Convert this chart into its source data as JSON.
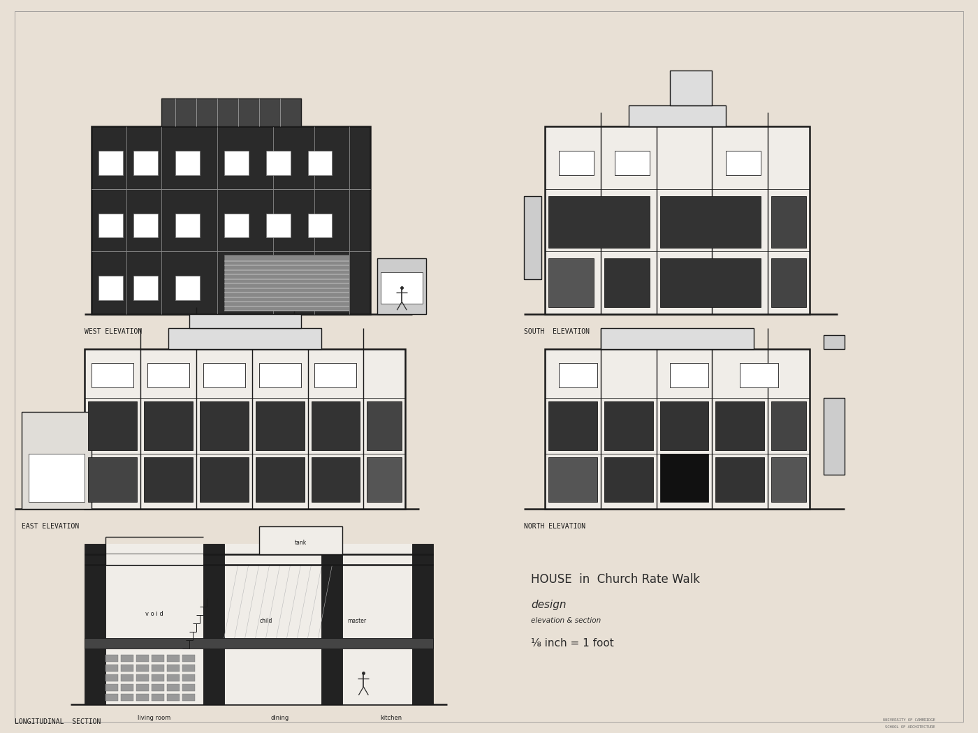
{
  "background_color": "#e8e0d5",
  "line_color": "#1a1a1a",
  "title_line1": "HOUSE  in  Church Rate Walk",
  "title_line2": "design",
  "title_line3": "elevation & section",
  "title_line4": "⅛ inch = 1 foot",
  "label_west": "WEST ELEVATION",
  "label_south": "SOUTH  ELEVATION",
  "label_east": "EAST ELEVATION",
  "label_north": "NORTH ELEVATION",
  "label_section": "LONGITUDINAL  SECTION",
  "footer_line1": "UNIVERSITY OF CAMBRIDGE",
  "footer_line2": "SCHOOL OF ARCHITECTURE",
  "dark_fill": "#2a2a2a",
  "medium_fill": "#555555",
  "light_fill": "#aaaaaa",
  "hatch_fill": "#888888",
  "paper_color": "#e8e0d5"
}
